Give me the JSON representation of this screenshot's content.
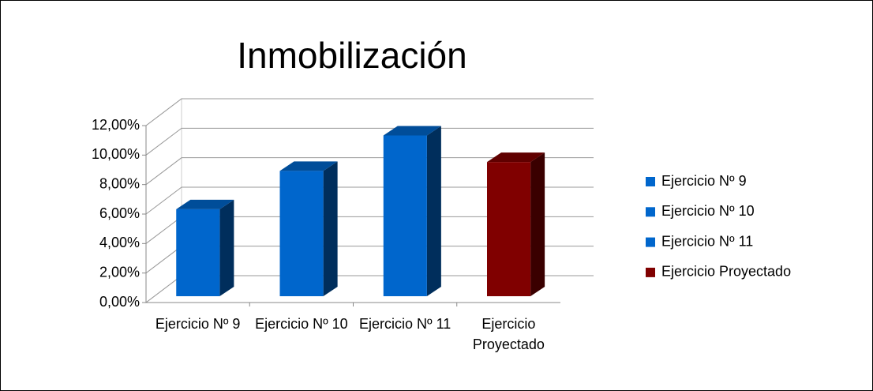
{
  "chart_data": {
    "type": "bar3d",
    "title": "Inmobilización",
    "categories": [
      "Ejercicio Nº 9",
      "Ejercicio Nº 10",
      "Ejercicio Nº 11",
      "Ejercicio Proyectado"
    ],
    "values": [
      5.9,
      8.5,
      10.9,
      9.1
    ],
    "colors": [
      "#0066cc",
      "#0066cc",
      "#0066cc",
      "#800000"
    ],
    "ylim": [
      0,
      12
    ],
    "yticks": [
      {
        "value": 0,
        "label": "0,00%"
      },
      {
        "value": 2,
        "label": "2,00%"
      },
      {
        "value": 4,
        "label": "4,00%"
      },
      {
        "value": 6,
        "label": "6,00%"
      },
      {
        "value": 8,
        "label": "8,00%"
      },
      {
        "value": 10,
        "label": "10,00%"
      },
      {
        "value": 12,
        "label": "12,00%"
      }
    ],
    "grid": true,
    "legend": "right"
  }
}
